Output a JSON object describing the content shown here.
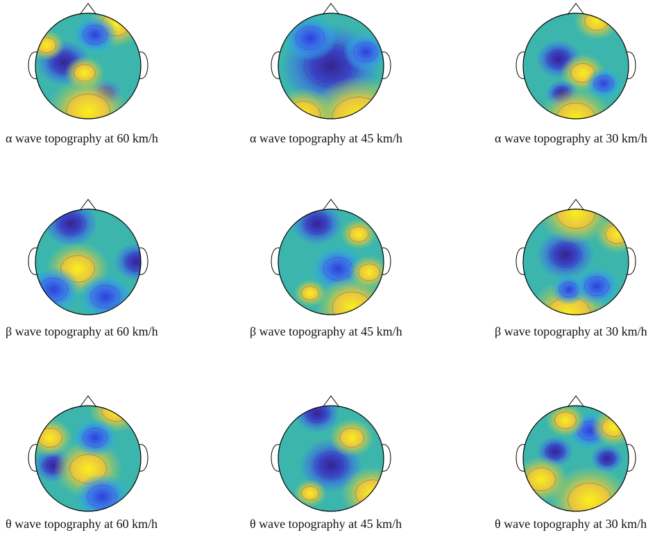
{
  "panels": [
    {
      "caption": "α wave topography at 60 km/h"
    },
    {
      "caption": "α wave topography at 45 km/h"
    },
    {
      "caption": "α wave topography at 30 km/h"
    },
    {
      "caption": "β wave topography at 60 km/h"
    },
    {
      "caption": "β wave topography at 45 km/h"
    },
    {
      "caption": "β wave topography at 30 km/h"
    },
    {
      "caption": "θ wave topography at 60 km/h"
    },
    {
      "caption": "θ wave topography at 45 km/h"
    },
    {
      "caption": "θ wave topography at 30 km/h"
    }
  ]
}
